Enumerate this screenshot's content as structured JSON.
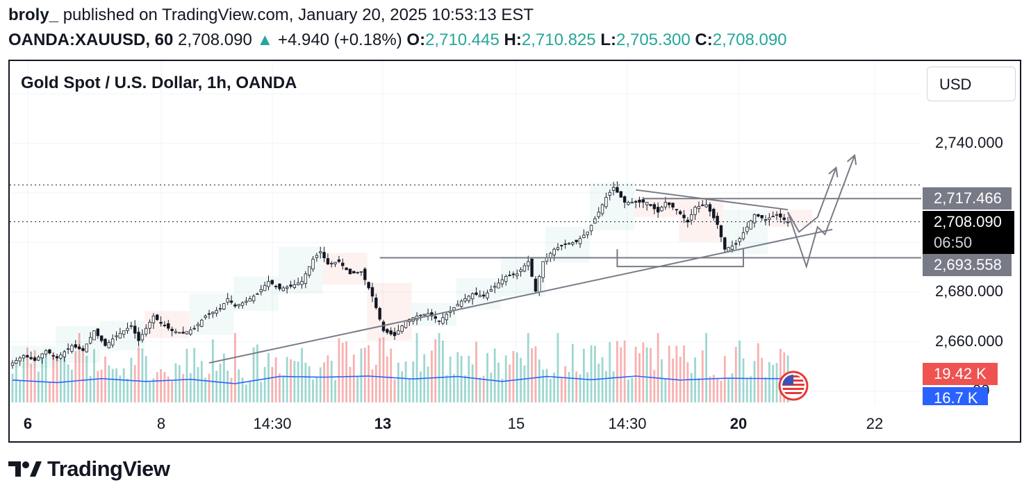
{
  "header": {
    "author": "broly_",
    "published": " published on TradingView.com, January 20, 2025 10:53:13 EST",
    "symbol": "OANDA:XAUUSD, 60",
    "last": "2,708.090",
    "change_arrow": "▲",
    "change": "+4.940 (+0.18%)",
    "o_key": "O:",
    "o_val": "2,710.445",
    "h_key": "H:",
    "h_val": "2,710.825",
    "l_key": "L:",
    "l_val": "2,705.300",
    "c_key": "C:",
    "c_val": "2,708.090"
  },
  "chart_title": "Gold Spot / U.S. Dollar, 1h, OANDA",
  "currency_button": "USD",
  "price_axis": {
    "labels": [
      "2,740.000",
      "2,680.000",
      "2,660.000"
    ],
    "partial_label": "00",
    "tags": {
      "resistance": "2,717.466",
      "last_price": "2,708.090",
      "countdown": "06:50",
      "support": "2,693.558",
      "volume_sell": "19.42 K",
      "volume_ma": "16.7 K"
    },
    "colors": {
      "resistance": "#787b86",
      "last": "#000000",
      "support": "#787b86",
      "vol_sell": "#ef5350",
      "vol_ma": "#2962ff"
    }
  },
  "time_axis": [
    {
      "label": "6",
      "bold": true
    },
    {
      "label": "8",
      "bold": false
    },
    {
      "label": "14:30",
      "bold": false
    },
    {
      "label": "13",
      "bold": true
    },
    {
      "label": "15",
      "bold": false
    },
    {
      "label": "14:30",
      "bold": false
    },
    {
      "label": "20",
      "bold": true
    },
    {
      "label": "22",
      "bold": false
    }
  ],
  "flag_icon": "us-flag-icon",
  "logo_text": "TradingView",
  "chart_data": {
    "type": "candlestick",
    "symbol": "OANDA:XAUUSD",
    "interval": "1h",
    "y_range": [
      2653,
      2746
    ],
    "grid": true,
    "colors": {
      "up": "#26a69a",
      "down": "#ef5350",
      "candle": "#131722",
      "volume_ma": "#2962ff"
    },
    "close_path": [
      [
        0,
        2651
      ],
      [
        3,
        2654
      ],
      [
        6,
        2652
      ],
      [
        9,
        2656
      ],
      [
        12,
        2653
      ],
      [
        16,
        2658
      ],
      [
        19,
        2656
      ],
      [
        22,
        2664
      ],
      [
        25,
        2658
      ],
      [
        28,
        2662
      ],
      [
        32,
        2666
      ],
      [
        34,
        2660
      ],
      [
        38,
        2670
      ],
      [
        40,
        2667
      ],
      [
        43,
        2664
      ],
      [
        46,
        2663
      ],
      [
        49,
        2665
      ],
      [
        52,
        2670
      ],
      [
        56,
        2673
      ],
      [
        58,
        2677
      ],
      [
        60,
        2674
      ],
      [
        63,
        2676
      ],
      [
        66,
        2679
      ],
      [
        69,
        2684
      ],
      [
        72,
        2681
      ],
      [
        75,
        2682
      ],
      [
        78,
        2684
      ],
      [
        81,
        2693
      ],
      [
        83,
        2696
      ],
      [
        85,
        2691
      ],
      [
        88,
        2692
      ],
      [
        91,
        2687
      ],
      [
        94,
        2688
      ],
      [
        97,
        2678
      ],
      [
        100,
        2664
      ],
      [
        103,
        2662
      ],
      [
        106,
        2668
      ],
      [
        109,
        2670
      ],
      [
        112,
        2671
      ],
      [
        115,
        2668
      ],
      [
        118,
        2672
      ],
      [
        121,
        2676
      ],
      [
        124,
        2679
      ],
      [
        127,
        2678
      ],
      [
        130,
        2682
      ],
      [
        133,
        2686
      ],
      [
        136,
        2687
      ],
      [
        139,
        2692
      ],
      [
        141,
        2680
      ],
      [
        143,
        2692
      ],
      [
        146,
        2697
      ],
      [
        149,
        2699
      ],
      [
        152,
        2700
      ],
      [
        155,
        2704
      ],
      [
        158,
        2712
      ],
      [
        160,
        2718
      ],
      [
        162,
        2722
      ],
      [
        165,
        2716
      ],
      [
        168,
        2716
      ],
      [
        171,
        2716
      ],
      [
        174,
        2712
      ],
      [
        176,
        2716
      ],
      [
        179,
        2713
      ],
      [
        182,
        2708
      ],
      [
        184,
        2714
      ],
      [
        187,
        2715
      ],
      [
        190,
        2707
      ],
      [
        192,
        2697
      ],
      [
        195,
        2699
      ],
      [
        198,
        2706
      ],
      [
        200,
        2711
      ],
      [
        203,
        2709
      ],
      [
        206,
        2711
      ],
      [
        209,
        2708
      ]
    ],
    "volume_ma_line": [
      [
        0,
        0.62
      ],
      [
        12,
        0.55
      ],
      [
        24,
        0.66
      ],
      [
        36,
        0.58
      ],
      [
        48,
        0.64
      ],
      [
        60,
        0.52
      ],
      [
        72,
        0.72
      ],
      [
        84,
        0.7
      ],
      [
        96,
        0.73
      ],
      [
        108,
        0.65
      ],
      [
        120,
        0.72
      ],
      [
        132,
        0.58
      ],
      [
        144,
        0.72
      ],
      [
        156,
        0.63
      ],
      [
        168,
        0.73
      ],
      [
        180,
        0.62
      ],
      [
        192,
        0.67
      ],
      [
        204,
        0.66
      ],
      [
        209,
        0.66
      ]
    ],
    "drawings": {
      "ascending_trendline": [
        [
          53,
          2651
        ],
        [
          221,
          2705
        ]
      ],
      "descending_trendline": [
        [
          168,
          2721
        ],
        [
          209,
          2713
        ]
      ],
      "resistance_level": 2717.466,
      "support_level": 2693.558,
      "last_price_level": 2708.09,
      "projection_1": [
        [
          209,
          2712
        ],
        [
          212,
          2704
        ],
        [
          217,
          2710
        ],
        [
          222,
          2730
        ]
      ],
      "projection_2": [
        [
          209,
          2712
        ],
        [
          214,
          2690
        ],
        [
          217,
          2706
        ],
        [
          219,
          2703
        ],
        [
          227,
          2735
        ]
      ]
    }
  }
}
